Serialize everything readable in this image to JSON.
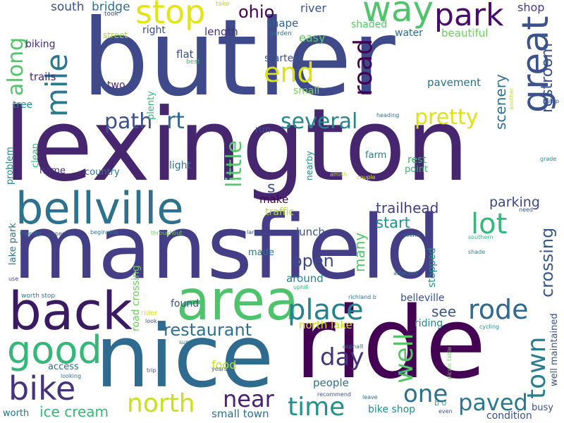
{
  "word_cloud": {
    "words": [
      {
        "text": "butler",
        "color": "#3e4a89"
      },
      {
        "text": "lexington",
        "color": "#46276f"
      },
      {
        "text": "mansfield",
        "color": "#433e85"
      },
      {
        "text": "nice",
        "color": "#2f6b8e"
      },
      {
        "text": "ride",
        "color": "#440154"
      },
      {
        "text": "area",
        "color": "#4ec36b"
      },
      {
        "text": "back",
        "color": "#3a1b63"
      },
      {
        "text": "bellville",
        "color": "#2c728e"
      },
      {
        "text": "good",
        "color": "#35b779"
      },
      {
        "text": "bike",
        "color": "#46337e"
      },
      {
        "text": "way",
        "color": "#4fc46a"
      },
      {
        "text": "park",
        "color": "#4a0c6b"
      },
      {
        "text": "stop",
        "color": "#e3e418"
      },
      {
        "text": "end",
        "color": "#dae319"
      },
      {
        "text": "great",
        "color": "#3b528b"
      },
      {
        "text": "mile",
        "color": "#2a788e"
      },
      {
        "text": "along",
        "color": "#52c569"
      },
      {
        "text": "road",
        "color": "#440154"
      },
      {
        "text": "place",
        "color": "#26818e"
      },
      {
        "text": "rode",
        "color": "#31688e"
      },
      {
        "text": "north",
        "color": "#c8e020"
      },
      {
        "text": "time",
        "color": "#21918c"
      },
      {
        "text": "town",
        "color": "#287d8e"
      },
      {
        "text": "well",
        "color": "#56c667"
      },
      {
        "text": "day",
        "color": "#46337e"
      },
      {
        "text": "one",
        "color": "#2d708e"
      },
      {
        "text": "near",
        "color": "#482173"
      },
      {
        "text": "paved",
        "color": "#2a788e"
      },
      {
        "text": "restaurant",
        "color": "#2e6e8e"
      },
      {
        "text": "lot",
        "color": "#35b779"
      },
      {
        "text": "several",
        "color": "#25858e"
      },
      {
        "text": "little",
        "color": "#54c568"
      },
      {
        "text": "pretty",
        "color": "#dde318"
      },
      {
        "text": "path",
        "color": "#3b528b"
      },
      {
        "text": "rt",
        "color": "#31688e"
      },
      {
        "text": "ohio",
        "color": "#440154"
      },
      {
        "text": "trailhead",
        "color": "#433e85"
      },
      {
        "text": "parking",
        "color": "#3f4788"
      },
      {
        "text": "crossing",
        "color": "#38598c"
      },
      {
        "text": "restroom",
        "color": "#3b528b"
      },
      {
        "text": "scenery",
        "color": "#2c728e"
      },
      {
        "text": "start",
        "color": "#1f948c"
      },
      {
        "text": "open",
        "color": "#3e4a89"
      },
      {
        "text": "many",
        "color": "#52c569"
      },
      {
        "text": "see",
        "color": "#3b528b"
      },
      {
        "text": "food",
        "color": "#c2df23"
      },
      {
        "text": "ice cream",
        "color": "#35b779"
      },
      {
        "text": "s",
        "color": "#3b528b"
      },
      {
        "text": "south",
        "color": "#3b528b"
      },
      {
        "text": "bridge",
        "color": "#2c728e"
      },
      {
        "text": "river",
        "color": "#3b528b"
      },
      {
        "text": "shop",
        "color": "#443983"
      },
      {
        "text": "shape",
        "color": "#33638d"
      },
      {
        "text": "easy",
        "color": "#5ec962"
      },
      {
        "text": "shaded",
        "color": "#56c667"
      },
      {
        "text": "beautiful",
        "color": "#6ccd5a"
      },
      {
        "text": "water",
        "color": "#2d708e"
      },
      {
        "text": "right",
        "color": "#3e4a89"
      },
      {
        "text": "length",
        "color": "#46337e"
      },
      {
        "text": "two",
        "color": "#482878"
      },
      {
        "text": "flat",
        "color": "#3b528b"
      },
      {
        "text": "biking",
        "color": "#472d7b"
      },
      {
        "text": "trails",
        "color": "#481f70"
      },
      {
        "text": "tree",
        "color": "#228c8d"
      },
      {
        "text": "started",
        "color": "#3b528b"
      },
      {
        "text": "small",
        "color": "#7ad151"
      },
      {
        "text": "pavement",
        "color": "#2c728e"
      },
      {
        "text": "home",
        "color": "#46337e"
      },
      {
        "text": "country",
        "color": "#2c728e"
      },
      {
        "text": "light",
        "color": "#2c728e"
      },
      {
        "text": "rest",
        "color": "#35b779"
      },
      {
        "text": "point",
        "color": "#35b779"
      },
      {
        "text": "farm",
        "color": "#26828e"
      },
      {
        "text": "run",
        "color": "#3b528b"
      },
      {
        "text": "make",
        "color": "#440154"
      },
      {
        "text": "traffic",
        "color": "#b5de2b"
      },
      {
        "text": "lunch",
        "color": "#3b528b"
      },
      {
        "text": "made",
        "color": "#2c728e"
      },
      {
        "text": "around",
        "color": "#26828e"
      },
      {
        "text": "found",
        "color": "#3b528b"
      },
      {
        "text": "stopped",
        "color": "#21918c"
      },
      {
        "text": "belleville",
        "color": "#3b528b"
      },
      {
        "text": "riding",
        "color": "#26828e"
      },
      {
        "text": "north lake",
        "color": "#c8e020"
      },
      {
        "text": "access",
        "color": "#2c728e"
      },
      {
        "text": "people",
        "color": "#2c728e"
      },
      {
        "text": "bike shop",
        "color": "#21918c"
      },
      {
        "text": "small town",
        "color": "#2c728e"
      },
      {
        "text": "condition",
        "color": "#3b528b"
      },
      {
        "text": "busy",
        "color": "#3b528b"
      },
      {
        "text": "worth",
        "color": "#2c728e"
      },
      {
        "text": "clean",
        "color": "#35b779"
      },
      {
        "text": "problem",
        "color": "#228c8d"
      },
      {
        "text": "lake park",
        "color": "#2c728e"
      },
      {
        "text": "road crossing",
        "color": "#6ccd5a"
      },
      {
        "text": "plenty",
        "color": "#35b779"
      },
      {
        "text": "nearby",
        "color": "#228c8d"
      },
      {
        "text": "well maintained",
        "color": "#3b528b"
      },
      {
        "text": "street",
        "color": "#a0da39"
      },
      {
        "text": "garden",
        "color": "#2c728e"
      },
      {
        "text": "took",
        "color": "#3b528b"
      },
      {
        "text": "take",
        "color": "#b5de2b"
      },
      {
        "text": "best",
        "color": "#35b779"
      },
      {
        "text": "another",
        "color": "#b5de2b"
      },
      {
        "text": "bump",
        "color": "#3b528b"
      },
      {
        "text": "heading",
        "color": "#2c728e"
      },
      {
        "text": "grade",
        "color": "#21918c"
      },
      {
        "text": "couple",
        "color": "#dde318"
      },
      {
        "text": "amish",
        "color": "#b5de2b"
      },
      {
        "text": "need",
        "color": "#3b528b"
      },
      {
        "text": "scenic",
        "color": "#2c728e"
      },
      {
        "text": "southern",
        "color": "#35b779"
      },
      {
        "text": "shade",
        "color": "#26828e"
      },
      {
        "text": "friendly",
        "color": "#2c728e"
      },
      {
        "text": "perfect",
        "color": "#3b528b"
      },
      {
        "text": "beginning",
        "color": "#2c728e"
      },
      {
        "text": "throughout",
        "color": "#6ccd5a"
      },
      {
        "text": "large",
        "color": "#3b528b"
      },
      {
        "text": "adjacent",
        "color": "#2c728e"
      },
      {
        "text": "use",
        "color": "#3b528b"
      },
      {
        "text": "uphill",
        "color": "#35b779"
      },
      {
        "text": "worth stop",
        "color": "#26828e"
      },
      {
        "text": "richland b",
        "color": "#2c728e"
      },
      {
        "text": "rider",
        "color": "#dde318"
      },
      {
        "text": "look",
        "color": "#3b528b"
      },
      {
        "text": "cycling",
        "color": "#21918c"
      },
      {
        "text": "summer",
        "color": "#2c728e"
      },
      {
        "text": "asphalt",
        "color": "#26828e"
      },
      {
        "text": "years",
        "color": "#2c728e"
      },
      {
        "text": "trip",
        "color": "#3b528b"
      },
      {
        "text": "looking",
        "color": "#2c728e"
      },
      {
        "text": "feel",
        "color": "#2c728e"
      },
      {
        "text": "picnic table",
        "color": "#6ccd5a"
      },
      {
        "text": "recommend",
        "color": "#3b528b"
      },
      {
        "text": "leave",
        "color": "#2c728e"
      },
      {
        "text": "b o",
        "color": "#35b779"
      },
      {
        "text": "even",
        "color": "#3b528b"
      }
    ]
  }
}
